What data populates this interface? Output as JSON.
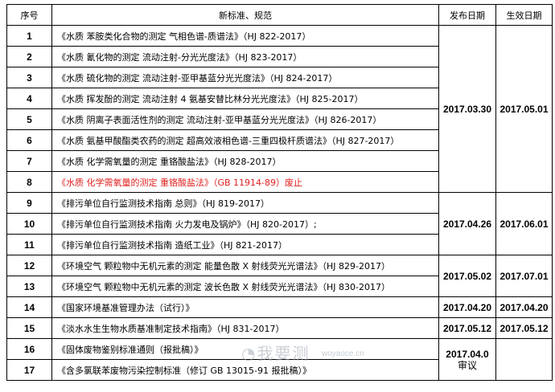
{
  "header": {
    "seq": "序号",
    "title": "新标准、规范",
    "published": "发布日期",
    "effective": "生效日期"
  },
  "rows": [
    {
      "seq": "1",
      "title": "《水质  苯胺类化合物的测定  气相色谱-质谱法》（HJ 822-2017）"
    },
    {
      "seq": "2",
      "title": "《水质  氰化物的测定  流动注射-分光光度法》（HJ 823-2017）"
    },
    {
      "seq": "3",
      "title": "《水质  硫化物的测定  流动注射-亚甲基蓝分光光度法》（HJ 824-2017）"
    },
    {
      "seq": "4",
      "title": "《水质  挥发酚的测定  流动注射 4 氨基安替比林分光光度法》（HJ 825-2017）"
    },
    {
      "seq": "5",
      "title": "《水质  阴离子表面活性剂的测定  流动注射-亚甲基蓝分光光度法》（HJ 826-2017）"
    },
    {
      "seq": "6",
      "title": "《水质  氨基甲酸酯类农药的测定  超高效液相色谱-三重四极杆质谱法》（HJ 827-2017）"
    },
    {
      "seq": "7",
      "title": "《水质  化学需氧量的测定  重铬酸盐法》（HJ 828-2017）"
    },
    {
      "seq": "8",
      "title": "《水质  化学需氧量的测定  重铬酸盐法》（GB 11914-89）废止"
    },
    {
      "seq": "9",
      "title": "《排污单位自行监测技术指南  总则》（HJ 819-2017）"
    },
    {
      "seq": "10",
      "title": "《排污单位自行监测技术指南  火力发电及锅炉》（HJ 820-2017）;"
    },
    {
      "seq": "11",
      "title": "《排污单位自行监测技术指南  造纸工业》（HJ 821-2017）"
    },
    {
      "seq": "12",
      "title": "《环境空气  颗粒物中无机元素的测定  能量色散 X 射线荧光光谱法》（HJ 829-2017）"
    },
    {
      "seq": "13",
      "title": "《环境空气  颗粒物中无机元素的测定  波长色散 X 射线荧光光谱法》（HJ 830-2017）"
    },
    {
      "seq": "14",
      "title": "《国家环境基准管理办法（试行）》"
    },
    {
      "seq": "15",
      "title": "《淡水水生生物水质基准制定技术指南》（HJ 831-2017）"
    },
    {
      "seq": "16",
      "title": "《固体废物鉴别标准通则（报批稿）》"
    },
    {
      "seq": "17",
      "title": "《含多氯联苯废物污染控制标准（修订 GB 13015-91  报批稿）》"
    }
  ],
  "groups": [
    {
      "published": "2017.03.30",
      "effective": "2017.05.01"
    },
    {
      "published": "2017.04.26",
      "effective": "2017.06.01"
    },
    {
      "published": "2017.05.02",
      "effective": "2017.07.01"
    },
    {
      "published": "2017.04.20",
      "effective": "2017.04.20"
    },
    {
      "published": "2017.05.12",
      "effective": "2017.05.12"
    },
    {
      "published": "2017.04.0",
      "status": "审议",
      "effective": ""
    }
  ],
  "colors": {
    "abolished": "#e02020"
  },
  "watermark": {
    "text": "我要测",
    "url": "woyaoce.cn"
  }
}
